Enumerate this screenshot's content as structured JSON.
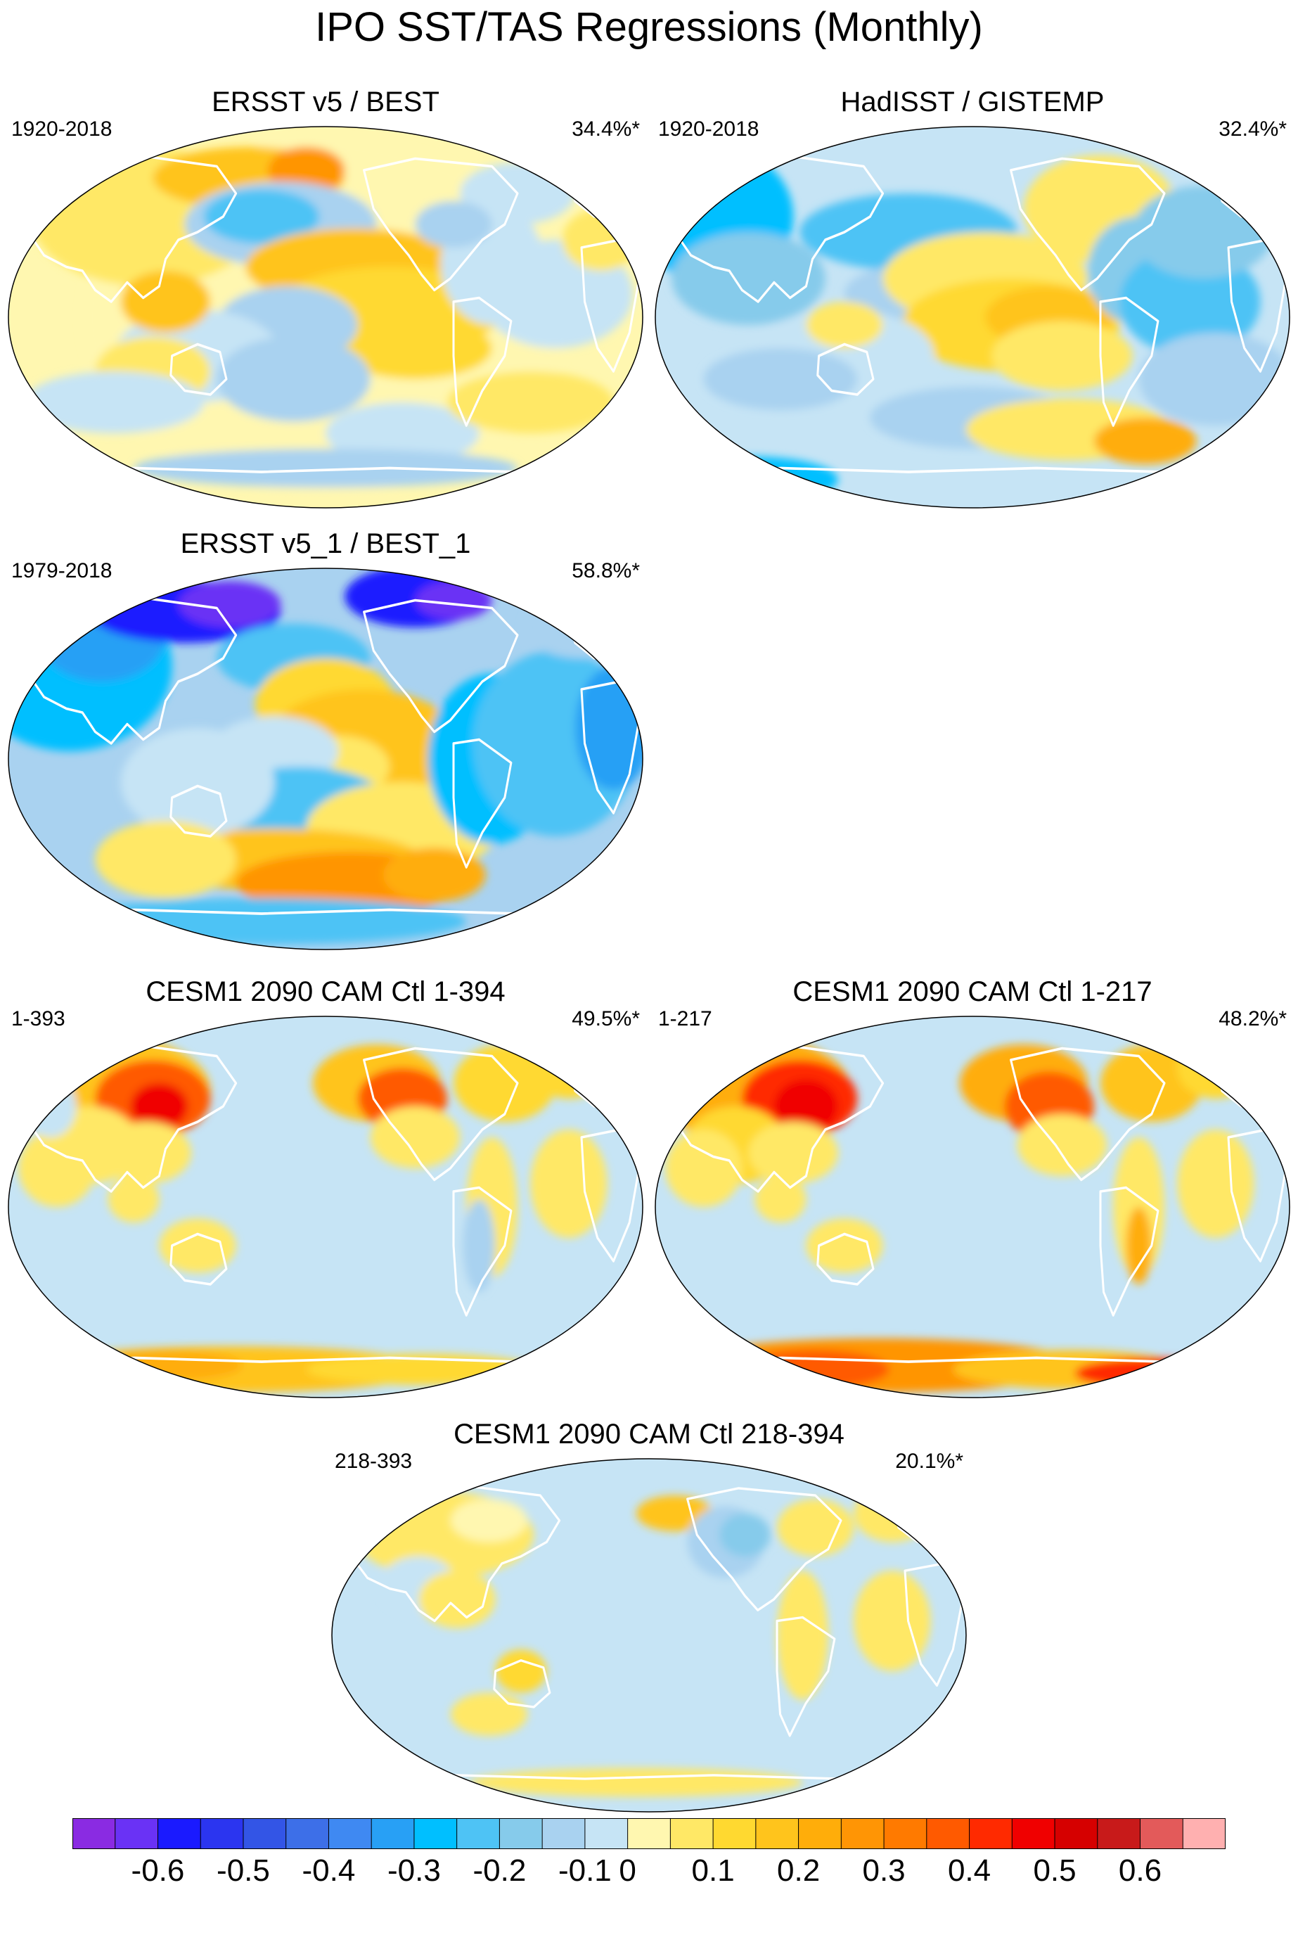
{
  "figure": {
    "title": "IPO SST/TAS Regressions (Monthly)"
  },
  "panels": [
    {
      "id": "ersst-best",
      "title": "ERSST v5 / BEST",
      "period": "1920-2018",
      "variance": "34.4%*",
      "pattern": "obs"
    },
    {
      "id": "hadisst-gistemp",
      "title": "HadISST / GISTEMP",
      "period": "1920-2018",
      "variance": "32.4%*",
      "pattern": "obs2"
    },
    {
      "id": "ersst-best-1",
      "title": "ERSST v5_1 / BEST_1",
      "period": "1979-2018",
      "variance": "58.8%*",
      "pattern": "recent"
    },
    {
      "id": "cesm-1-394",
      "title": "CESM1 2090 CAM Ctl 1-394",
      "period": "1-393",
      "variance": "49.5%*",
      "pattern": "model"
    },
    {
      "id": "cesm-1-217",
      "title": "CESM1 2090 CAM Ctl 1-217",
      "period": "1-217",
      "variance": "48.2%*",
      "pattern": "model2"
    },
    {
      "id": "cesm-218-394",
      "title": "CESM1 2090 CAM Ctl 218-394",
      "period": "218-393",
      "variance": "20.1%*",
      "pattern": "weak"
    }
  ],
  "colorbar": {
    "colors": [
      "#8a2be2",
      "#6a32f5",
      "#1a1aff",
      "#2b35f0",
      "#3355e6",
      "#3d6fe8",
      "#3f89f2",
      "#28a0f5",
      "#00bfff",
      "#4ec3f5",
      "#86cbeb",
      "#a9d2f0",
      "#c6e4f5",
      "#fff7b0",
      "#ffe866",
      "#ffd930",
      "#ffc41c",
      "#ffad0a",
      "#ff9505",
      "#ff7a00",
      "#ff5a00",
      "#ff2a00",
      "#f00000",
      "#d60000",
      "#c81a1a",
      "#e35a5a",
      "#ffb0b0"
    ],
    "tick_labels": [
      "-0.6",
      "-0.5",
      "-0.4",
      "-0.3",
      "-0.2",
      "-0.1",
      "0",
      "0.1",
      "0.2",
      "0.3",
      "0.4",
      "0.5",
      "0.6"
    ]
  }
}
